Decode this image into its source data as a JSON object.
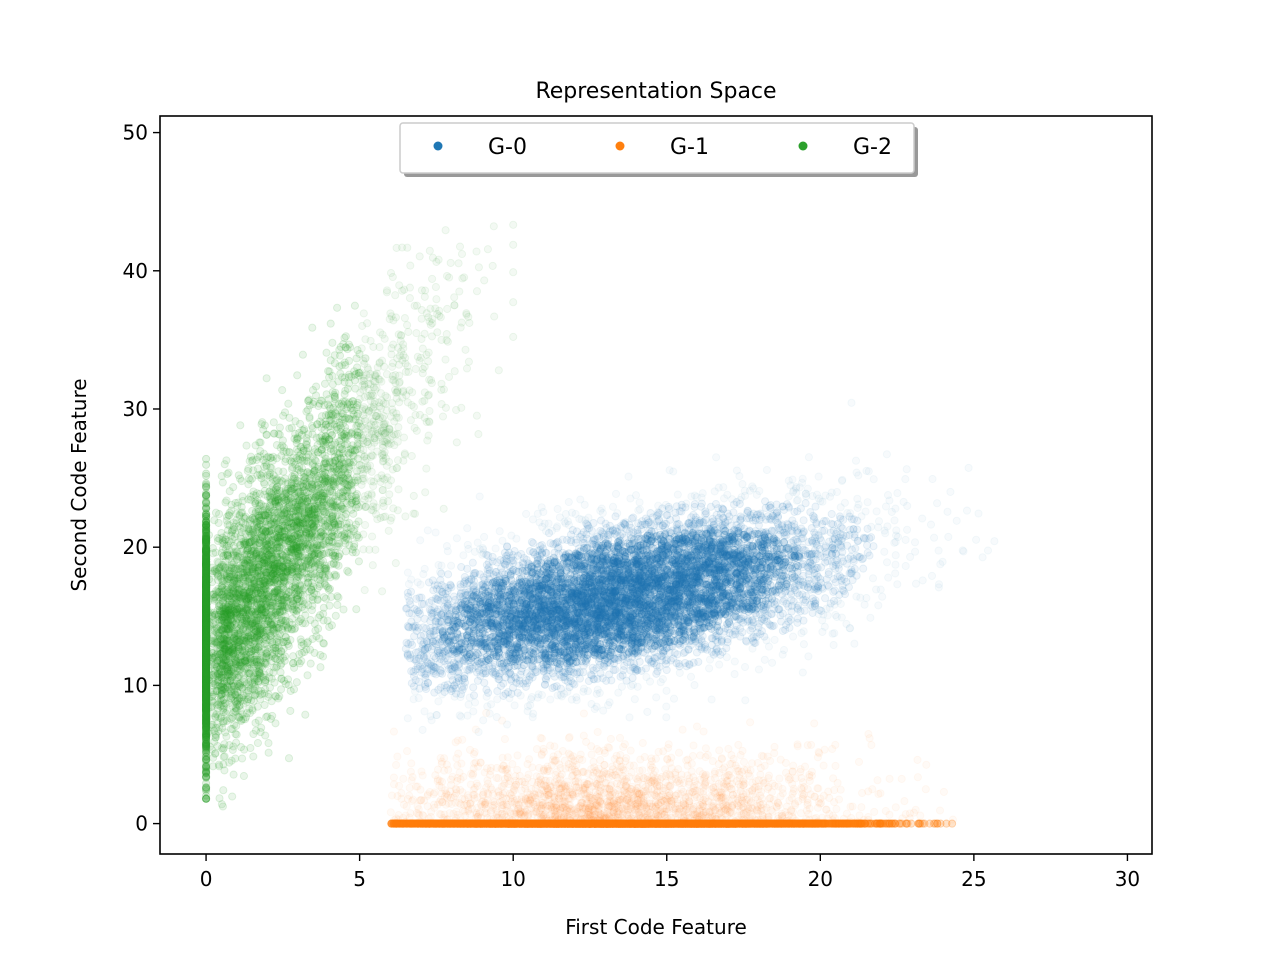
{
  "chart_data": {
    "type": "scatter",
    "title": "Representation Space",
    "xlabel": "First Code Feature",
    "ylabel": "Second Code Feature",
    "xlim": [
      -1.5,
      30.8
    ],
    "ylim": [
      -2.2,
      51.2
    ],
    "xticks": [
      0,
      5,
      10,
      15,
      20,
      25,
      30
    ],
    "yticks": [
      0,
      10,
      20,
      30,
      40,
      50
    ],
    "grid": false,
    "legend": {
      "placement": "upper center",
      "ncol": 3,
      "shadow": true
    },
    "series": [
      {
        "name": "G-0",
        "color": "#1f77b4",
        "n_points": 7000,
        "center": [
          13.5,
          16.3
        ],
        "std_major": 4.2,
        "std_minor": 2.3,
        "angle_deg": 36,
        "x_range": [
          6.5,
          26
        ],
        "y_range": [
          6.5,
          31
        ]
      },
      {
        "name": "G-1",
        "color": "#ff7f0e",
        "n_points": 7000,
        "x_center": 13.3,
        "x_std": 3.8,
        "x_range": [
          6.0,
          24.5
        ],
        "y_mode": 0,
        "y_tail_range": [
          0,
          8
        ]
      },
      {
        "name": "G-2",
        "color": "#2ca02c",
        "n_points": 6000,
        "x_zero_fraction": 0.3,
        "zero_y_center": 13.3,
        "zero_y_std": 4.2,
        "zero_y_range": [
          1.8,
          27
        ],
        "slope": 3.05,
        "intercept": 11.7,
        "residual_std": 4.2,
        "x_range": [
          0,
          10
        ]
      }
    ]
  }
}
